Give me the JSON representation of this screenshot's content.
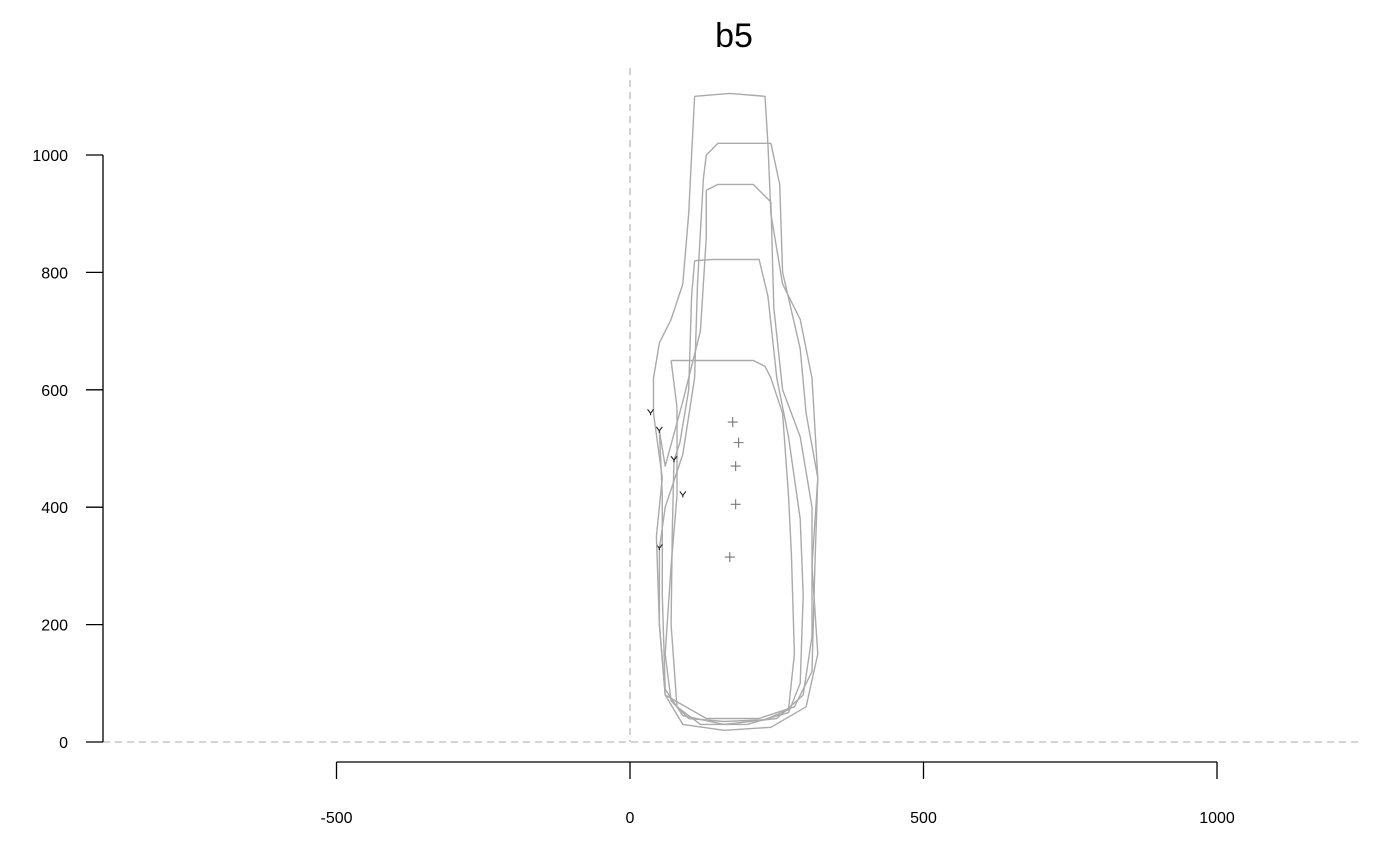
{
  "chart_data": {
    "type": "line",
    "title": "b5",
    "xlabel": "",
    "ylabel": "",
    "xlim": [
      -900,
      1250
    ],
    "ylim": [
      0,
      1100
    ],
    "x_ticks": [
      -500,
      0,
      500,
      1000
    ],
    "x_tick_labels": [
      "-500",
      "0",
      "500",
      "1000"
    ],
    "y_ticks": [
      0,
      200,
      400,
      600,
      800,
      1000
    ],
    "y_tick_labels": [
      "0",
      "200",
      "400",
      "600",
      "800",
      "1000"
    ],
    "reference_lines": {
      "x": 0,
      "y": 0,
      "style": "dashed",
      "color": "#bbbbbb"
    },
    "grid": false,
    "outline_color": "#aaaaaa",
    "series": [
      {
        "outline": [
          [
            70,
            650
          ],
          [
            80,
            570
          ],
          [
            80,
            420
          ],
          [
            70,
            300
          ],
          [
            60,
            150
          ],
          [
            70,
            70
          ],
          [
            100,
            40
          ],
          [
            160,
            35
          ],
          [
            230,
            38
          ],
          [
            270,
            55
          ],
          [
            280,
            150
          ],
          [
            275,
            320
          ],
          [
            270,
            420
          ],
          [
            260,
            560
          ],
          [
            240,
            620
          ],
          [
            230,
            640
          ],
          [
            210,
            650
          ],
          [
            120,
            650
          ],
          [
            70,
            650
          ]
        ],
        "start_marker": [
          90,
          420
        ],
        "centroid": [
          180,
          405
        ]
      },
      {
        "outline": [
          [
            110,
            820
          ],
          [
            140,
            822
          ],
          [
            220,
            822
          ],
          [
            235,
            760
          ],
          [
            250,
            620
          ],
          [
            270,
            520
          ],
          [
            290,
            380
          ],
          [
            295,
            250
          ],
          [
            290,
            100
          ],
          [
            270,
            50
          ],
          [
            200,
            30
          ],
          [
            120,
            30
          ],
          [
            80,
            60
          ],
          [
            70,
            200
          ],
          [
            72,
            360
          ],
          [
            75,
            480
          ],
          [
            85,
            510
          ],
          [
            100,
            600
          ],
          [
            105,
            760
          ],
          [
            110,
            820
          ]
        ],
        "start_marker": [
          75,
          480
        ],
        "centroid": [
          180,
          470
        ]
      },
      {
        "outline": [
          [
            130,
            940
          ],
          [
            150,
            950
          ],
          [
            210,
            950
          ],
          [
            240,
            920
          ],
          [
            245,
            740
          ],
          [
            260,
            600
          ],
          [
            290,
            520
          ],
          [
            310,
            400
          ],
          [
            310,
            180
          ],
          [
            295,
            80
          ],
          [
            250,
            40
          ],
          [
            160,
            30
          ],
          [
            90,
            45
          ],
          [
            60,
            90
          ],
          [
            55,
            250
          ],
          [
            55,
            420
          ],
          [
            50,
            530
          ],
          [
            60,
            470
          ],
          [
            90,
            580
          ],
          [
            120,
            700
          ],
          [
            130,
            860
          ],
          [
            130,
            940
          ]
        ],
        "start_marker": [
          50,
          530
        ],
        "centroid": [
          185,
          510
        ]
      },
      {
        "outline": [
          [
            130,
            1000
          ],
          [
            150,
            1020
          ],
          [
            240,
            1020
          ],
          [
            255,
            950
          ],
          [
            260,
            800
          ],
          [
            290,
            670
          ],
          [
            300,
            560
          ],
          [
            320,
            450
          ],
          [
            315,
            300
          ],
          [
            310,
            120
          ],
          [
            280,
            60
          ],
          [
            220,
            40
          ],
          [
            130,
            40
          ],
          [
            60,
            80
          ],
          [
            50,
            200
          ],
          [
            50,
            330
          ],
          [
            60,
            400
          ],
          [
            90,
            490
          ],
          [
            110,
            620
          ],
          [
            115,
            780
          ],
          [
            125,
            960
          ],
          [
            130,
            1000
          ]
        ],
        "start_marker": [
          50,
          330
        ],
        "centroid": [
          170,
          315
        ]
      },
      {
        "outline": [
          [
            110,
            1100
          ],
          [
            170,
            1105
          ],
          [
            230,
            1100
          ],
          [
            235,
            1020
          ],
          [
            240,
            900
          ],
          [
            260,
            780
          ],
          [
            290,
            720
          ],
          [
            310,
            620
          ],
          [
            320,
            450
          ],
          [
            310,
            300
          ],
          [
            320,
            150
          ],
          [
            300,
            60
          ],
          [
            240,
            25
          ],
          [
            160,
            20
          ],
          [
            90,
            30
          ],
          [
            60,
            80
          ],
          [
            50,
            200
          ],
          [
            45,
            350
          ],
          [
            55,
            450
          ],
          [
            40,
            560
          ],
          [
            40,
            620
          ],
          [
            50,
            680
          ],
          [
            70,
            720
          ],
          [
            90,
            780
          ],
          [
            100,
            900
          ],
          [
            105,
            1000
          ],
          [
            110,
            1100
          ]
        ],
        "start_marker": [
          35,
          560
        ],
        "centroid": [
          175,
          545
        ]
      }
    ]
  }
}
